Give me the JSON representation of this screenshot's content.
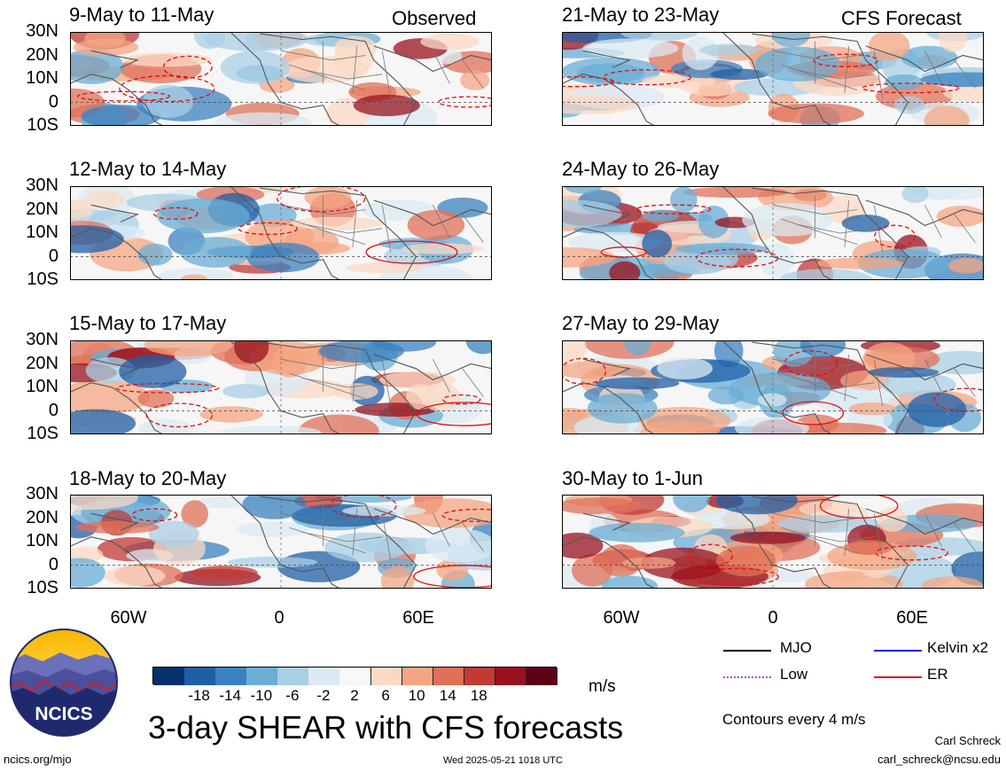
{
  "observed_label": "Observed",
  "forecast_label": "CFS Forecast",
  "panels_left": [
    {
      "title": "9-May to 11-May"
    },
    {
      "title": "12-May to 14-May"
    },
    {
      "title": "15-May to 17-May"
    },
    {
      "title": "18-May to 20-May"
    }
  ],
  "panels_right": [
    {
      "title": "21-May to 23-May"
    },
    {
      "title": "24-May to 26-May"
    },
    {
      "title": "27-May to 29-May"
    },
    {
      "title": "30-May to 1-Jun"
    }
  ],
  "lat_labels": [
    "30N",
    "20N",
    "10N",
    "0",
    "10S"
  ],
  "lon_labels": [
    "60W",
    "0",
    "60E"
  ],
  "colorbar": {
    "ticks": [
      "-18",
      "-14",
      "-10",
      "-6",
      "-2",
      "2",
      "6",
      "10",
      "14",
      "18"
    ],
    "colors": [
      "#08306b",
      "#1f5fa6",
      "#3b82c0",
      "#6aaed6",
      "#a9cfe5",
      "#dbeaf3",
      "#f8f8f8",
      "#fbd9c4",
      "#f4a582",
      "#e07058",
      "#c23a34",
      "#98111f",
      "#5e0016"
    ],
    "units": "m/s"
  },
  "legend": {
    "mjo": {
      "label": "MJO",
      "color": "#000000"
    },
    "kelvin": {
      "label": "Kelvin x2",
      "color": "#1020e0"
    },
    "low": {
      "label": "Low",
      "color": "#b050c0"
    },
    "er": {
      "label": "ER",
      "color": "#e01010"
    }
  },
  "contours_note": "Contours every 4 m/s",
  "main_title": "3-day SHEAR with CFS forecasts",
  "logo_text": "NCICS",
  "author": "Carl Schreck",
  "email": "carl_schreck@ncsu.edu",
  "site": "ncics.org/mjo",
  "timestamp": "Wed 2025-05-21 1018 UTC"
}
